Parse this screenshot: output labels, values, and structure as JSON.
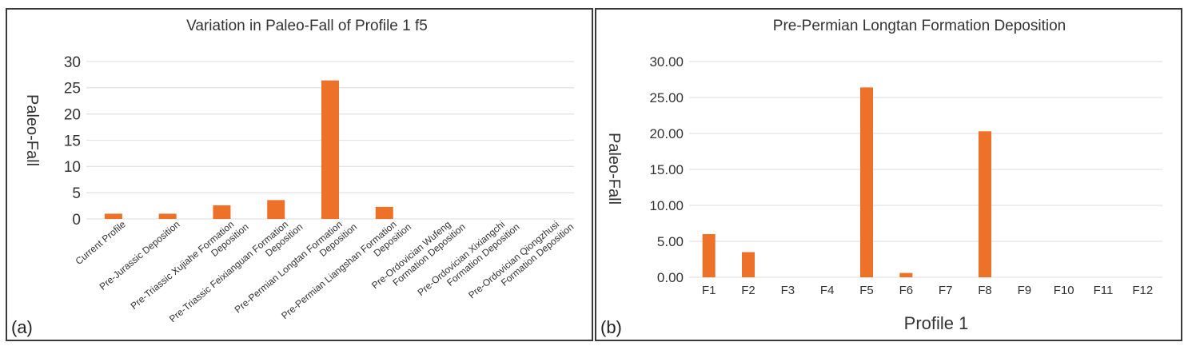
{
  "colors": {
    "bar": "#ED7128",
    "grid": "#E3E3E3",
    "frame": "#3A3A3A",
    "text": "#333333"
  },
  "chart_data": [
    {
      "panel_label": "(a)",
      "type": "bar",
      "title": "Variation in Paleo-Fall of Profile 1 f5",
      "xlabel": "",
      "ylabel": "Paleo-Fall",
      "ylim": [
        0,
        30
      ],
      "yticks": [
        "0",
        "5",
        "10",
        "15",
        "20",
        "25",
        "30"
      ],
      "grid": true,
      "categories": [
        [
          "Current Profile"
        ],
        [
          "Pre-Jurassic Deposition"
        ],
        [
          "Pre-Triassic Xujiahe Formation",
          "Deposition"
        ],
        [
          "Pre-Triassic Feixianguan Formation",
          "Deposition"
        ],
        [
          "Pre-Permian Longtan Formation",
          "Deposition"
        ],
        [
          "Pre-Permian Liangshan Formation",
          "Deposition"
        ],
        [
          "Pre-Ordovician Wufeng",
          "Formation Deposition"
        ],
        [
          "Pre-Ordovician Xixiangchi",
          "Formation Deposition"
        ],
        [
          "Pre-Ordovician Qiongzhusi",
          "Formation Deposition"
        ]
      ],
      "values": [
        1.0,
        1.0,
        2.6,
        3.6,
        26.4,
        2.3,
        0,
        0,
        0
      ]
    },
    {
      "panel_label": "(b)",
      "type": "bar",
      "title": "Pre-Permian Longtan Formation Deposition",
      "xlabel": "Profile 1",
      "ylabel": "Paleo-Fall",
      "ylim": [
        0,
        30
      ],
      "yticks": [
        "0.00",
        "5.00",
        "10.00",
        "15.00",
        "20.00",
        "25.00",
        "30.00"
      ],
      "grid": true,
      "categories": [
        "F1",
        "F2",
        "F3",
        "F4",
        "F5",
        "F6",
        "F7",
        "F8",
        "F9",
        "F10",
        "F11",
        "F12"
      ],
      "values": [
        6.0,
        3.5,
        0,
        0,
        26.4,
        0.6,
        0,
        20.3,
        0,
        0,
        0,
        0
      ]
    }
  ]
}
